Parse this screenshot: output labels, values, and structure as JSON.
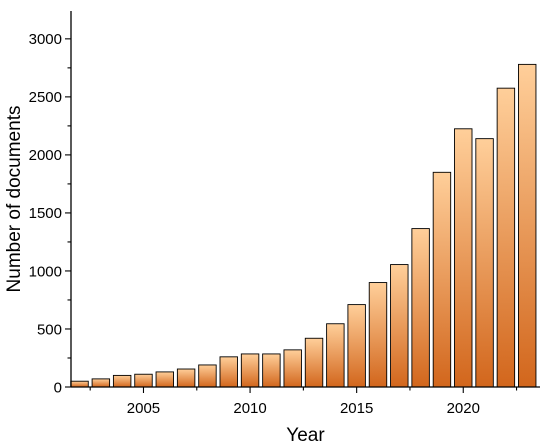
{
  "chart_data": {
    "type": "bar",
    "title": "",
    "xlabel": "Year",
    "ylabel": "Number of documents",
    "categories": [
      "2002",
      "2003",
      "2004",
      "2005",
      "2006",
      "2007",
      "2008",
      "2009",
      "2010",
      "2011",
      "2012",
      "2013",
      "2014",
      "2015",
      "2016",
      "2017",
      "2018",
      "2019",
      "2020",
      "2021",
      "2022",
      "2023"
    ],
    "values": [
      50,
      70,
      100,
      110,
      130,
      155,
      190,
      260,
      285,
      285,
      320,
      420,
      545,
      710,
      900,
      1055,
      1365,
      1850,
      2225,
      2140,
      2575,
      2780
    ],
    "xticks": [
      "2005",
      "2010",
      "2015",
      "2020"
    ],
    "yticks": [
      "0",
      "500",
      "1000",
      "1500",
      "2000",
      "2500",
      "3000"
    ],
    "xlim": [
      2001.6,
      2023.6
    ],
    "ylim": [
      0,
      3240
    ],
    "grid": false,
    "legend": "none",
    "colors": {
      "bar_top": "#ffcf9a",
      "bar_bottom": "#d2661c",
      "bar_stroke": "#000000",
      "axis": "#000000"
    }
  }
}
